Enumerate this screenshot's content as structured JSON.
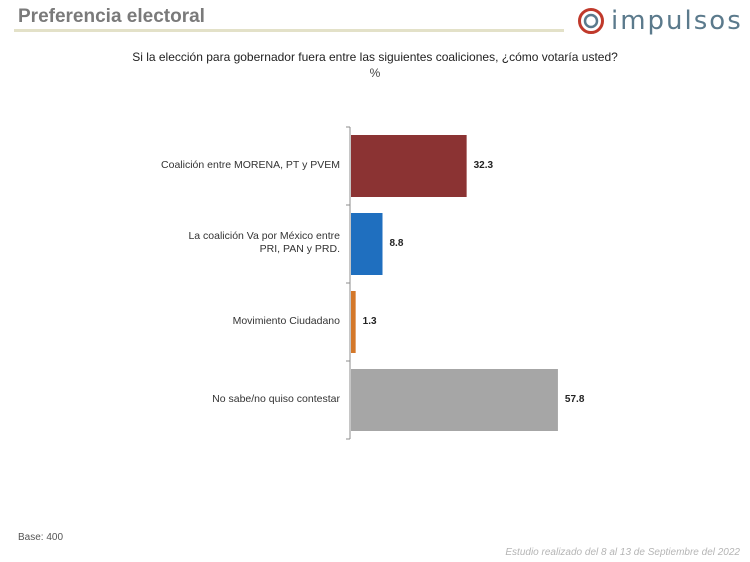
{
  "header": {
    "title": "Preferencia electoral"
  },
  "logo": {
    "text": "impulsos",
    "icon": "impulsos-logo-icon",
    "ring_color": "#c0392b",
    "inner_color": "#5b7a8c"
  },
  "question": "Si la elección para gobernador fuera entre las siguientes coaliciones, ¿cómo votaría usted?",
  "unit": "%",
  "chart_data": {
    "type": "bar",
    "orientation": "horizontal",
    "title": "",
    "xlabel": "",
    "ylabel": "",
    "xlim": [
      0,
      60
    ],
    "grid": false,
    "legend": "none",
    "categories": [
      "Coalición entre MORENA, PT y PVEM",
      "La coalición Va por México entre PRI, PAN y PRD.",
      "Movimiento Ciudadano",
      "No sabe/no quiso contestar"
    ],
    "category_lines": [
      [
        "Coalición entre MORENA, PT y PVEM"
      ],
      [
        "La coalición Va por México entre",
        "PRI, PAN y PRD."
      ],
      [
        "Movimiento Ciudadano"
      ],
      [
        "No sabe/no quiso contestar"
      ]
    ],
    "values": [
      32.3,
      8.8,
      1.3,
      57.8
    ],
    "value_labels": [
      "32.3",
      "8.8",
      "1.3",
      "57.8"
    ],
    "colors": [
      "#8b3333",
      "#1f6fbf",
      "#d4782a",
      "#a6a6a6"
    ]
  },
  "footer": {
    "base": "Base: 400",
    "note": "Estudio realizado del 8 al 13 de Septiembre del 2022"
  }
}
